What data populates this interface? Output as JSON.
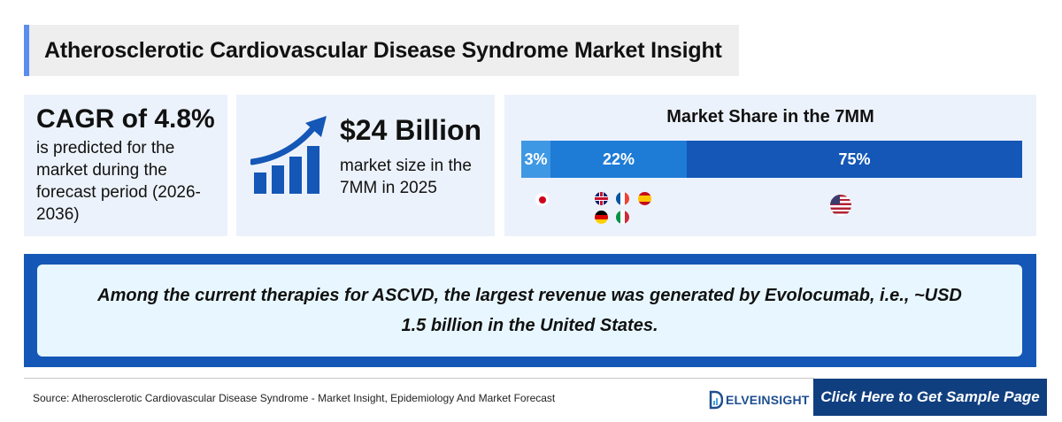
{
  "title": "Atherosclerotic Cardiovascular Disease Syndrome Market Insight",
  "cagr": {
    "headline": "CAGR of 4.8%",
    "text": "is predicted for the market during the forecast period (2026-2036)"
  },
  "market_size": {
    "headline": "$24 Billion",
    "text": "market size in the 7MM in 2025",
    "icon": "growth-chart-icon"
  },
  "market_share": {
    "title": "Market Share in the 7MM",
    "segments": [
      {
        "label": "3%",
        "value": 3,
        "region": "Japan",
        "color": "#3f98e4"
      },
      {
        "label": "22%",
        "value": 22,
        "region": "EU4 and UK",
        "color": "#1e7bd6"
      },
      {
        "label": "75%",
        "value": 75,
        "region": "United States",
        "color": "#1457b6"
      }
    ],
    "flags": [
      "japan-flag-icon",
      "uk-flag-icon",
      "france-flag-icon",
      "spain-flag-icon",
      "germany-flag-icon",
      "italy-flag-icon",
      "us-flag-icon"
    ]
  },
  "highlight": {
    "text": "Among the current therapies for ASCVD, the largest revenue was generated by Evolocumab, i.e., ~USD 1.5 billion in the United States."
  },
  "footer": {
    "source": "Source: Atherosclerotic Cardiovascular Disease Syndrome - Market Insight, Epidemiology And Market Forecast",
    "logo_text": "ELVEINSIGHT",
    "cta_label": "Click Here to Get Sample Page"
  },
  "colors": {
    "accent": "#5b8def",
    "brand_dark": "#103f7f",
    "brand": "#1457b6",
    "card_bg": "#ecf2fb"
  }
}
